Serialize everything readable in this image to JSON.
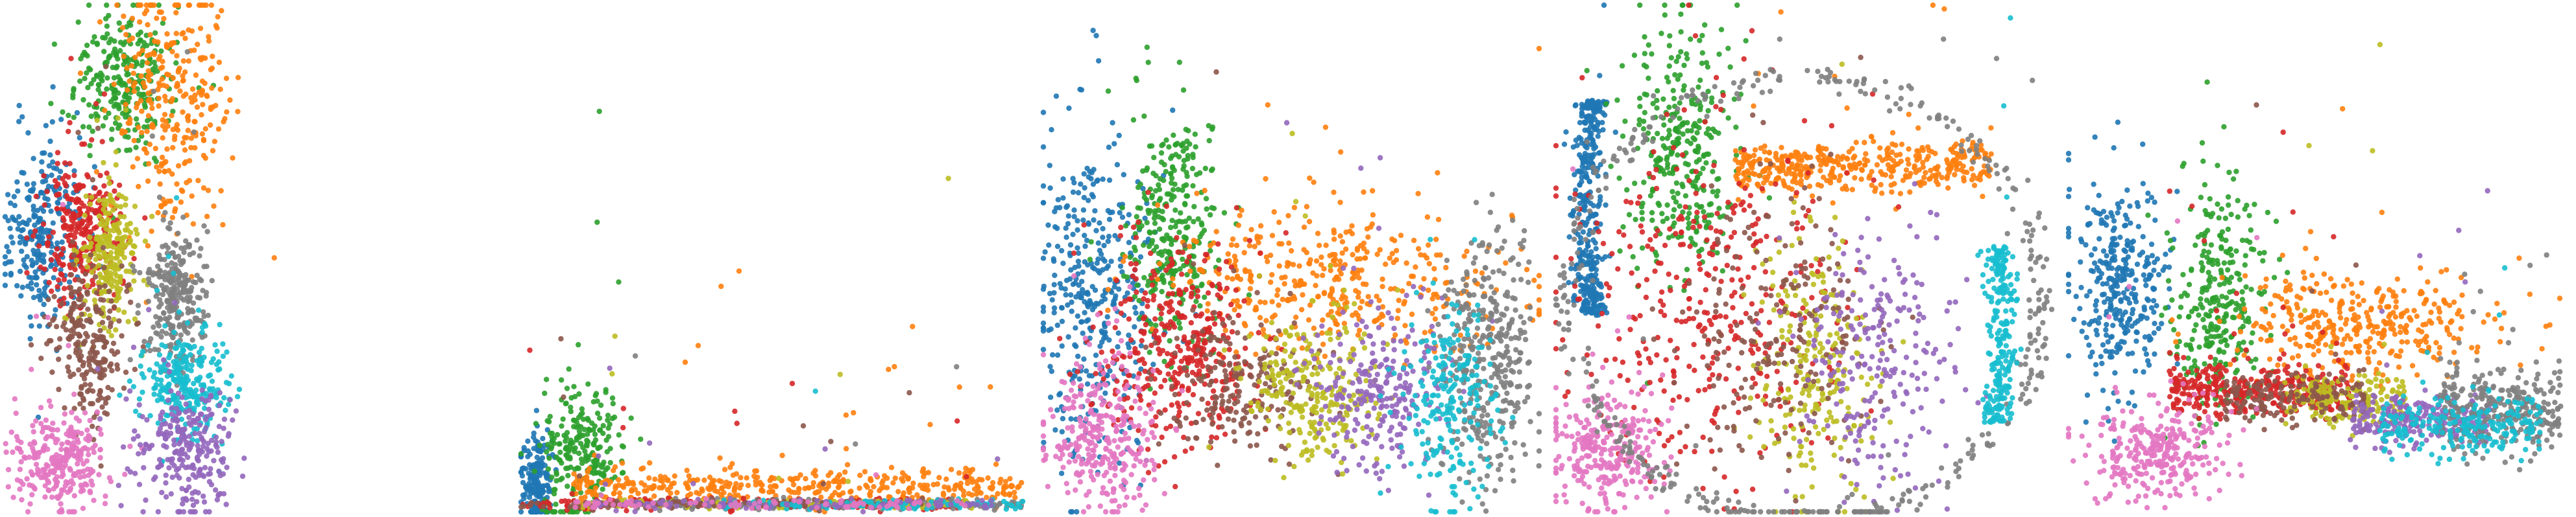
{
  "figure": {
    "description_free": true
  },
  "palette": {
    "blue": "#1f77b4",
    "orange": "#ff7f0e",
    "green": "#2ca02c",
    "red": "#d62728",
    "purple": "#9467bd",
    "brown": "#8c564b",
    "pink": "#e377c2",
    "gray": "#7f7f7f",
    "olive": "#bcbd22",
    "cyan": "#17becf"
  },
  "chart_data": [
    {
      "type": "scatter",
      "title": "",
      "xlabel": "",
      "ylabel": "",
      "axes_visible": false,
      "grid": false,
      "legend": "none",
      "xlim": [
        0,
        1
      ],
      "ylim": [
        0,
        1
      ],
      "series": [
        {
          "color": "blue",
          "count": 260,
          "shape": "blob",
          "cx": 0.08,
          "cy": 0.55,
          "sx": 0.04,
          "sy": 0.09
        },
        {
          "color": "green",
          "count": 260,
          "shape": "blob",
          "cx": 0.24,
          "cy": 0.85,
          "sx": 0.05,
          "sy": 0.07
        },
        {
          "color": "orange",
          "count": 300,
          "shape": "blob",
          "cx": 0.33,
          "cy": 0.82,
          "sx": 0.06,
          "sy": 0.13
        },
        {
          "color": "red",
          "count": 280,
          "shape": "blob",
          "cx": 0.15,
          "cy": 0.55,
          "sx": 0.04,
          "sy": 0.07
        },
        {
          "color": "olive",
          "count": 240,
          "shape": "blob",
          "cx": 0.21,
          "cy": 0.51,
          "sx": 0.03,
          "sy": 0.07
        },
        {
          "color": "brown",
          "count": 240,
          "shape": "blob",
          "cx": 0.17,
          "cy": 0.33,
          "sx": 0.04,
          "sy": 0.08
        },
        {
          "color": "pink",
          "count": 280,
          "shape": "blob",
          "cx": 0.11,
          "cy": 0.1,
          "sx": 0.05,
          "sy": 0.05
        },
        {
          "color": "gray",
          "count": 280,
          "shape": "blob",
          "cx": 0.34,
          "cy": 0.42,
          "sx": 0.03,
          "sy": 0.07
        },
        {
          "color": "cyan",
          "count": 260,
          "shape": "blob",
          "cx": 0.36,
          "cy": 0.25,
          "sx": 0.04,
          "sy": 0.05
        },
        {
          "color": "purple",
          "count": 260,
          "shape": "blob",
          "cx": 0.36,
          "cy": 0.12,
          "sx": 0.05,
          "sy": 0.06
        }
      ]
    },
    {
      "type": "scatter",
      "title": "",
      "xlabel": "",
      "ylabel": "",
      "axes_visible": false,
      "grid": false,
      "legend": "none",
      "xlim": [
        0,
        1
      ],
      "ylim": [
        0,
        1
      ],
      "series": [
        {
          "color": "blue",
          "count": 200,
          "shape": "blob",
          "cx": 0.03,
          "cy": 0.06,
          "sx": 0.015,
          "sy": 0.05
        },
        {
          "color": "green",
          "count": 260,
          "shape": "blob",
          "cx": 0.12,
          "cy": 0.11,
          "sx": 0.04,
          "sy": 0.06
        },
        {
          "color": "orange",
          "count": 420,
          "shape": "band",
          "cx": 0.55,
          "cy": 0.05,
          "sx": 0.45,
          "sy": 0.03
        },
        {
          "color": "red",
          "count": 220,
          "shape": "band",
          "cx": 0.45,
          "cy": 0.015,
          "sx": 0.45,
          "sy": 0.008
        },
        {
          "color": "gray",
          "count": 200,
          "shape": "band",
          "cx": 0.6,
          "cy": 0.015,
          "sx": 0.4,
          "sy": 0.008
        },
        {
          "color": "olive",
          "count": 120,
          "shape": "band",
          "cx": 0.5,
          "cy": 0.015,
          "sx": 0.4,
          "sy": 0.008
        },
        {
          "color": "brown",
          "count": 100,
          "shape": "band",
          "cx": 0.4,
          "cy": 0.015,
          "sx": 0.4,
          "sy": 0.008
        },
        {
          "color": "cyan",
          "count": 100,
          "shape": "band",
          "cx": 0.7,
          "cy": 0.015,
          "sx": 0.3,
          "sy": 0.008
        },
        {
          "color": "purple",
          "count": 100,
          "shape": "band",
          "cx": 0.55,
          "cy": 0.015,
          "sx": 0.4,
          "sy": 0.008
        },
        {
          "color": "pink",
          "count": 80,
          "shape": "band",
          "cx": 0.5,
          "cy": 0.015,
          "sx": 0.4,
          "sy": 0.008
        }
      ]
    },
    {
      "type": "scatter",
      "title": "",
      "xlabel": "",
      "ylabel": "",
      "axes_visible": false,
      "grid": false,
      "legend": "none",
      "xlim": [
        0,
        1
      ],
      "ylim": [
        0,
        1
      ],
      "series": [
        {
          "color": "blue",
          "count": 380,
          "shape": "blob",
          "cx": 0.1,
          "cy": 0.42,
          "sx": 0.06,
          "sy": 0.16
        },
        {
          "color": "green",
          "count": 320,
          "shape": "blob",
          "cx": 0.26,
          "cy": 0.55,
          "sx": 0.05,
          "sy": 0.12
        },
        {
          "color": "orange",
          "count": 420,
          "shape": "blob",
          "cx": 0.6,
          "cy": 0.45,
          "sx": 0.18,
          "sy": 0.07
        },
        {
          "color": "red",
          "count": 380,
          "shape": "blob",
          "cx": 0.28,
          "cy": 0.32,
          "sx": 0.08,
          "sy": 0.1
        },
        {
          "color": "brown",
          "count": 200,
          "shape": "blob",
          "cx": 0.4,
          "cy": 0.25,
          "sx": 0.08,
          "sy": 0.07
        },
        {
          "color": "olive",
          "count": 260,
          "shape": "blob",
          "cx": 0.55,
          "cy": 0.24,
          "sx": 0.07,
          "sy": 0.07
        },
        {
          "color": "purple",
          "count": 260,
          "shape": "blob",
          "cx": 0.68,
          "cy": 0.24,
          "sx": 0.07,
          "sy": 0.08
        },
        {
          "color": "pink",
          "count": 300,
          "shape": "blob",
          "cx": 0.12,
          "cy": 0.14,
          "sx": 0.06,
          "sy": 0.07
        },
        {
          "color": "gray",
          "count": 360,
          "shape": "blob",
          "cx": 0.9,
          "cy": 0.3,
          "sx": 0.05,
          "sy": 0.12
        },
        {
          "color": "cyan",
          "count": 220,
          "shape": "blob",
          "cx": 0.82,
          "cy": 0.22,
          "sx": 0.05,
          "sy": 0.1
        }
      ]
    },
    {
      "type": "scatter",
      "title": "",
      "xlabel": "",
      "ylabel": "",
      "axes_visible": false,
      "grid": false,
      "legend": "none",
      "xlim": [
        0,
        1
      ],
      "ylim": [
        0,
        1
      ],
      "series": [
        {
          "color": "blue",
          "count": 360,
          "shape": "arc-left",
          "cx": 0.08,
          "cy": 0.6,
          "sx": 0.04,
          "sy": 0.22
        },
        {
          "color": "green",
          "count": 320,
          "shape": "blob",
          "cx": 0.25,
          "cy": 0.7,
          "sx": 0.06,
          "sy": 0.12
        },
        {
          "color": "orange",
          "count": 400,
          "shape": "band",
          "cx": 0.62,
          "cy": 0.68,
          "sx": 0.26,
          "sy": 0.04
        },
        {
          "color": "red",
          "count": 380,
          "shape": "blob",
          "cx": 0.3,
          "cy": 0.4,
          "sx": 0.14,
          "sy": 0.18
        },
        {
          "color": "olive",
          "count": 240,
          "shape": "blob",
          "cx": 0.52,
          "cy": 0.28,
          "sx": 0.06,
          "sy": 0.14
        },
        {
          "color": "brown",
          "count": 200,
          "shape": "blob",
          "cx": 0.45,
          "cy": 0.35,
          "sx": 0.1,
          "sy": 0.14
        },
        {
          "color": "purple",
          "count": 240,
          "shape": "blob",
          "cx": 0.65,
          "cy": 0.3,
          "sx": 0.08,
          "sy": 0.14
        },
        {
          "color": "pink",
          "count": 280,
          "shape": "blob",
          "cx": 0.1,
          "cy": 0.12,
          "sx": 0.06,
          "sy": 0.06
        },
        {
          "color": "gray",
          "count": 420,
          "shape": "ring",
          "cx": 0.5,
          "cy": 0.42,
          "sx": 0.48,
          "sy": 0.44
        },
        {
          "color": "cyan",
          "count": 240,
          "shape": "arc-right",
          "cx": 0.88,
          "cy": 0.35,
          "sx": 0.04,
          "sy": 0.18
        }
      ]
    },
    {
      "type": "scatter",
      "title": "",
      "xlabel": "",
      "ylabel": "",
      "axes_visible": false,
      "grid": false,
      "legend": "none",
      "xlim": [
        0,
        1
      ],
      "ylim": [
        0,
        1
      ],
      "series": [
        {
          "color": "blue",
          "count": 320,
          "shape": "blob",
          "cx": 0.1,
          "cy": 0.45,
          "sx": 0.05,
          "sy": 0.1
        },
        {
          "color": "green",
          "count": 300,
          "shape": "blob",
          "cx": 0.3,
          "cy": 0.42,
          "sx": 0.05,
          "sy": 0.12
        },
        {
          "color": "orange",
          "count": 360,
          "shape": "blob",
          "cx": 0.58,
          "cy": 0.37,
          "sx": 0.13,
          "sy": 0.05
        },
        {
          "color": "red",
          "count": 380,
          "shape": "band",
          "cx": 0.38,
          "cy": 0.24,
          "sx": 0.18,
          "sy": 0.04
        },
        {
          "color": "olive",
          "count": 200,
          "shape": "band",
          "cx": 0.55,
          "cy": 0.22,
          "sx": 0.12,
          "sy": 0.04
        },
        {
          "color": "brown",
          "count": 160,
          "shape": "band",
          "cx": 0.45,
          "cy": 0.22,
          "sx": 0.14,
          "sy": 0.04
        },
        {
          "color": "purple",
          "count": 240,
          "shape": "band",
          "cx": 0.7,
          "cy": 0.18,
          "sx": 0.14,
          "sy": 0.04
        },
        {
          "color": "pink",
          "count": 300,
          "shape": "blob",
          "cx": 0.18,
          "cy": 0.12,
          "sx": 0.07,
          "sy": 0.05
        },
        {
          "color": "gray",
          "count": 300,
          "shape": "band",
          "cx": 0.86,
          "cy": 0.2,
          "sx": 0.12,
          "sy": 0.07
        },
        {
          "color": "cyan",
          "count": 220,
          "shape": "band",
          "cx": 0.78,
          "cy": 0.17,
          "sx": 0.16,
          "sy": 0.05
        }
      ]
    }
  ]
}
